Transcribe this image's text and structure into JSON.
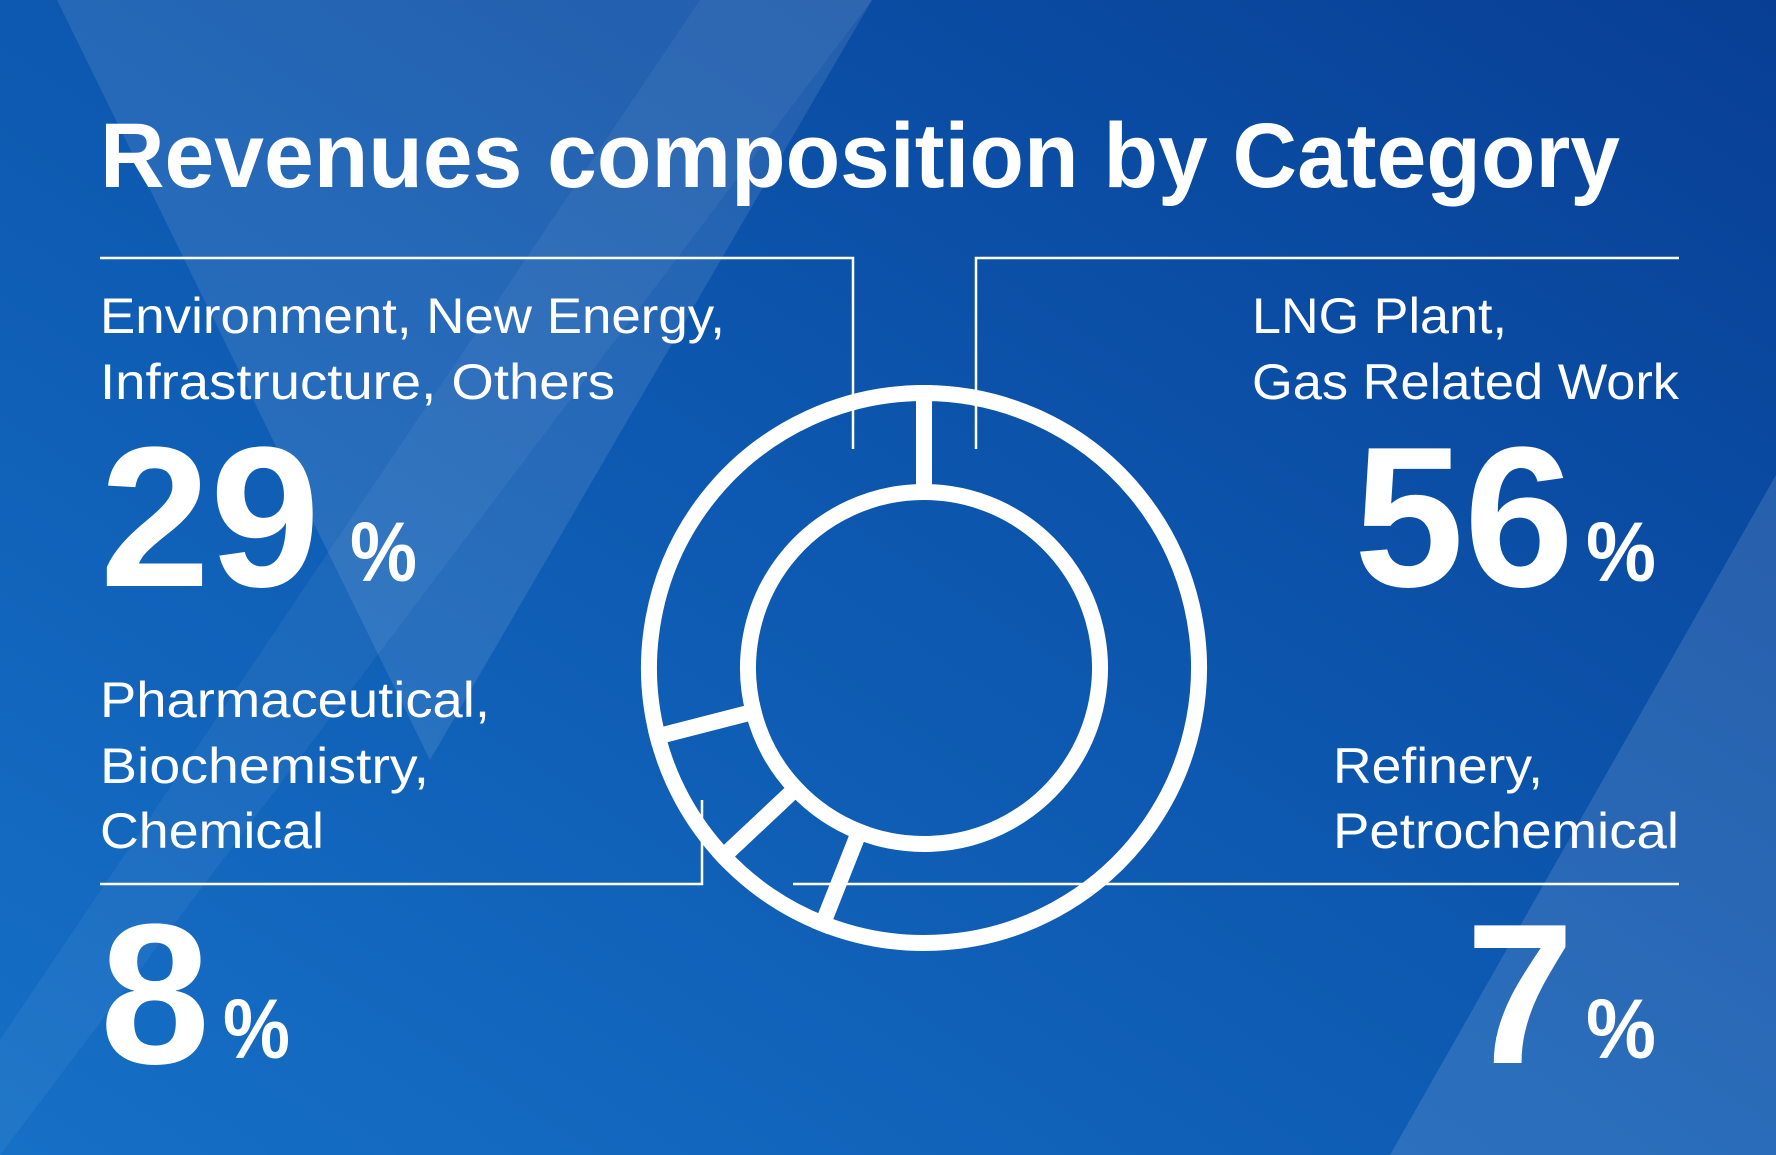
{
  "colors": {
    "background": "#0b4a9e",
    "background_light": "#1a70c8",
    "foreground": "#ffffff"
  },
  "chart_data": {
    "type": "pie",
    "variant": "donut",
    "title": "Revenues composition by Category",
    "categories": [
      "LNG Plant, Gas Related Work",
      "Refinery, Petrochemical",
      "Pharmaceutical, Biochemistry, Chemical",
      "Environment, New Energy, Infrastructure, Others"
    ],
    "values": [
      56,
      7,
      8,
      29
    ],
    "unit": "%",
    "labels": {
      "lng": {
        "line1": "LNG Plant,",
        "line2": "Gas Related Work",
        "value": "56",
        "unit": "%"
      },
      "refinery": {
        "line1": "Refinery,",
        "line2": "Petrochemical",
        "value": "7",
        "unit": "%"
      },
      "pharma": {
        "line1": "Pharmaceutical,",
        "line2": "Biochemistry,",
        "line3": "Chemical",
        "value": "8",
        "unit": "%"
      },
      "env": {
        "line1": "Environment, New Energy,",
        "line2": "Infrastructure, Others",
        "value": "29",
        "unit": "%"
      }
    }
  }
}
